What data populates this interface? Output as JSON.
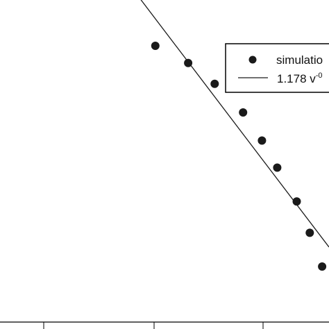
{
  "chart_data": {
    "type": "scatter",
    "series": [
      {
        "name": "simulatio",
        "kind": "points",
        "x": [
          0.0123,
          0.0156,
          0.0189,
          0.0232,
          0.0266,
          0.0297,
          0.0342,
          0.0376,
          0.0411
        ],
        "y": [
          0.883,
          0.832,
          0.774,
          0.701,
          0.636,
          0.579,
          0.515,
          0.462,
          0.411
        ]
      },
      {
        "name": "1.178 v",
        "name_superscript": "-0",
        "kind": "line"
      }
    ],
    "xlim": [
      0.004,
      0.0432
    ],
    "ylim": [
      0.331,
      1.035
    ],
    "xscale": "log",
    "yscale": "log",
    "legend": {
      "position": "top-right",
      "entries": [
        "simulatio",
        "1.178 v"
      ]
    },
    "colors": {
      "marker": "#1a1a1a",
      "line": "#1a1a1a",
      "axes": "#000000"
    }
  }
}
